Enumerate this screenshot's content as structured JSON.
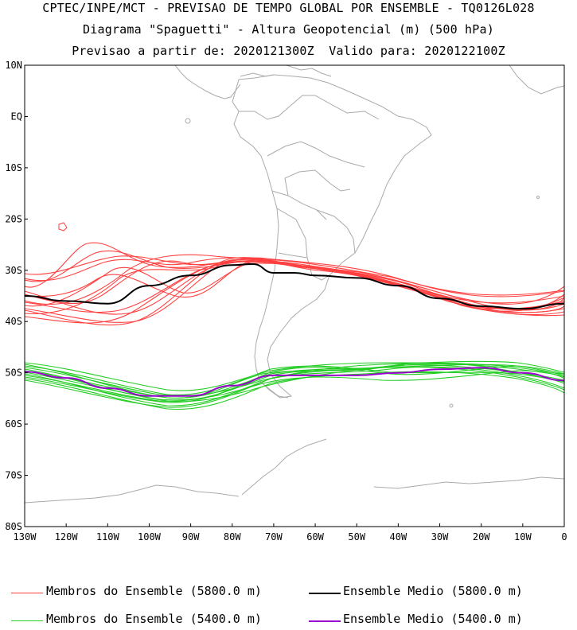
{
  "header": {
    "line1": "CPTEC/INPE/MCT - PREVISAO DE TEMPO GLOBAL POR ENSEMBLE - TQ0126L028",
    "line2": "Diagrama \"Spaguetti\" - Altura Geopotencial (m) (500 hPa)",
    "line3": "Previsao a partir de: 2020121300Z  Valido para: 2020122100Z"
  },
  "axes": {
    "lat_labels": [
      "10N",
      "EQ",
      "10S",
      "20S",
      "30S",
      "40S",
      "50S",
      "60S",
      "70S",
      "80S"
    ],
    "lon_labels": [
      "130W",
      "120W",
      "110W",
      "100W",
      "90W",
      "80W",
      "70W",
      "60W",
      "50W",
      "40W",
      "30W",
      "20W",
      "10W",
      "0"
    ]
  },
  "colors": {
    "member_5800": "#ff4040",
    "mean_5800": "#000000",
    "member_5400": "#22cc22",
    "mean_5400": "#9900cc",
    "coast": "#aaaaaa"
  },
  "legend": {
    "item1": "Membros do Ensemble (5800.0 m)",
    "item2": "Ensemble Medio (5800.0 m)",
    "item3": "Membros do Ensemble (5400.0 m)",
    "item4": "Ensemble Medio (5400.0 m)"
  },
  "chart_data": {
    "type": "map",
    "lon_range": [
      -130,
      0
    ],
    "lat_range": [
      -80,
      10
    ],
    "series": [
      {
        "name": "Ensemble Medio (5800.0 m)",
        "lon": [
          -130,
          -120,
          -110,
          -100,
          -90,
          -80,
          -75,
          -70,
          -65,
          -60,
          -50,
          -40,
          -30,
          -20,
          -10,
          0
        ],
        "lat": [
          -35,
          -36,
          -36.5,
          -33,
          -31,
          -29,
          -28.8,
          -30.5,
          -30.5,
          -31,
          -31.5,
          -33,
          -35.5,
          -37,
          -37.5,
          -36.5
        ]
      },
      {
        "name": "Ensemble Medio (5400.0 m)",
        "lon": [
          -130,
          -120,
          -110,
          -100,
          -90,
          -80,
          -70,
          -60,
          -50,
          -40,
          -30,
          -20,
          -10,
          0
        ],
        "lat": [
          -49.8,
          -51,
          -53,
          -54.5,
          -54.5,
          -52.5,
          -50.5,
          -50.5,
          -50.5,
          -50,
          -49.3,
          -49,
          -50,
          -51.5
        ]
      }
    ]
  }
}
